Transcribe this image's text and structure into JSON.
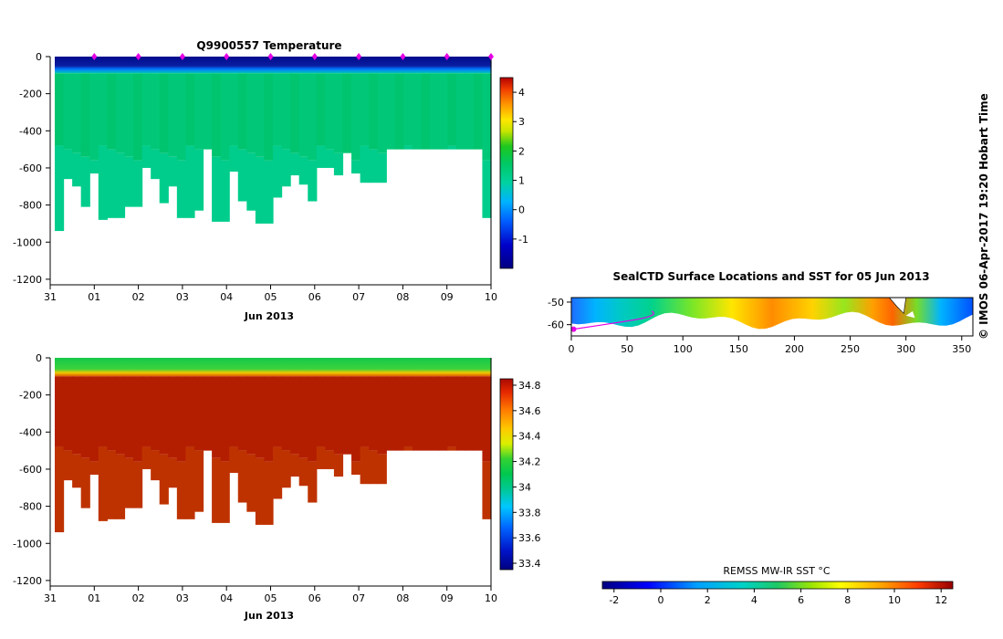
{
  "credit": "© IMOS 06-Apr-2017 19:20 Hobart Time",
  "temperature_panel": {
    "title": "Q9900557  Temperature",
    "xlabel": "Jun 2013",
    "colorbar_ticks": [
      "4",
      "3",
      "2",
      "1",
      "0",
      "-1"
    ]
  },
  "salinity_panel": {
    "title": "",
    "xlabel": "Jun 2013",
    "colorbar_ticks": [
      "34.8",
      "34.6",
      "34.4",
      "34.2",
      "34",
      "33.8",
      "33.6",
      "33.4"
    ]
  },
  "map_panel": {
    "title": "SealCTD Surface Locations and SST for 05 Jun 2013",
    "colorbar_label": "REMSS MW-IR SST °C",
    "colorbar_ticks": [
      "-2",
      "0",
      "2",
      "4",
      "6",
      "8",
      "10",
      "12"
    ]
  },
  "chart_data": [
    {
      "type": "heatmap",
      "name": "temperature-section",
      "title": "Q9900557  Temperature",
      "xlabel": "Jun 2013",
      "ylabel": "",
      "x_ticks": [
        "31",
        "01",
        "02",
        "03",
        "04",
        "05",
        "06",
        "07",
        "08",
        "09",
        "10"
      ],
      "y_ticks": [
        "0",
        "-200",
        "-400",
        "-600",
        "-800",
        "-1000",
        "-1200"
      ],
      "ylim": [
        -1230,
        0
      ],
      "xlim": [
        0,
        10
      ],
      "colorbar_range": [
        -2,
        4.5
      ],
      "colorbar_ticks": [
        4,
        3,
        2,
        1,
        0,
        -1
      ],
      "profile_days": [
        0.1,
        0.3,
        0.5,
        0.7,
        0.9,
        1.1,
        1.3,
        1.5,
        1.7,
        1.9,
        2.1,
        2.3,
        2.5,
        2.7,
        2.9,
        3.1,
        3.3,
        3.5,
        3.7,
        3.9,
        4.1,
        4.3,
        4.5,
        4.7,
        4.9,
        5.1,
        5.3,
        5.5,
        5.7,
        5.9,
        6.1,
        6.3,
        6.5,
        6.7,
        6.9,
        7.1,
        7.3,
        7.5,
        7.7,
        7.9,
        8.1,
        8.3,
        8.5,
        8.7,
        8.9,
        9.1,
        9.3,
        9.5,
        9.7,
        9.9
      ],
      "profile_max_depth": [
        -940,
        -660,
        -700,
        -810,
        -630,
        -880,
        -870,
        -870,
        -810,
        -810,
        -600,
        -660,
        -790,
        -700,
        -870,
        -870,
        -830,
        -500,
        -890,
        -890,
        -620,
        -780,
        -830,
        -900,
        -900,
        -760,
        -700,
        -640,
        -690,
        -780,
        -600,
        -600,
        -640,
        -520,
        -630,
        -680,
        -680,
        -680,
        -500,
        -500,
        -500,
        -500,
        -500,
        -500,
        -500,
        -500,
        -500,
        -500,
        -500,
        -870
      ],
      "surface_layer_value": -1.8,
      "surface_layer_depth": -90,
      "mid_layer_value": 1.0,
      "deep_layer_value": 0.5,
      "float_markers_days": [
        1,
        2,
        3,
        4,
        5,
        6,
        7,
        8,
        9,
        10
      ]
    },
    {
      "type": "heatmap",
      "name": "salinity-section",
      "title": "",
      "xlabel": "Jun 2013",
      "ylabel": "",
      "x_ticks": [
        "31",
        "01",
        "02",
        "03",
        "04",
        "05",
        "06",
        "07",
        "08",
        "09",
        "10"
      ],
      "y_ticks": [
        "0",
        "-200",
        "-400",
        "-600",
        "-800",
        "-1000",
        "-1200"
      ],
      "ylim": [
        -1230,
        0
      ],
      "xlim": [
        0,
        10
      ],
      "colorbar_range": [
        33.35,
        34.85
      ],
      "colorbar_ticks": [
        34.8,
        34.6,
        34.4,
        34.2,
        34,
        33.8,
        33.6,
        33.4
      ],
      "surface_layer_value": 34.05,
      "deep_layer_value": 34.72
    },
    {
      "type": "heatmap",
      "name": "sst-map",
      "title": "SealCTD Surface Locations and SST for 05 Jun 2013",
      "x_ticks": [
        "0",
        "50",
        "100",
        "150",
        "200",
        "250",
        "300",
        "350"
      ],
      "y_ticks": [
        "-50",
        "-60"
      ],
      "xlim": [
        0,
        360
      ],
      "ylim": [
        -65,
        -48
      ],
      "colorbar_label": "REMSS MW-IR SST °C",
      "colorbar_range": [
        -2.5,
        12.5
      ],
      "colorbar_ticks": [
        -2,
        0,
        2,
        4,
        6,
        8,
        10,
        12
      ]
    }
  ]
}
